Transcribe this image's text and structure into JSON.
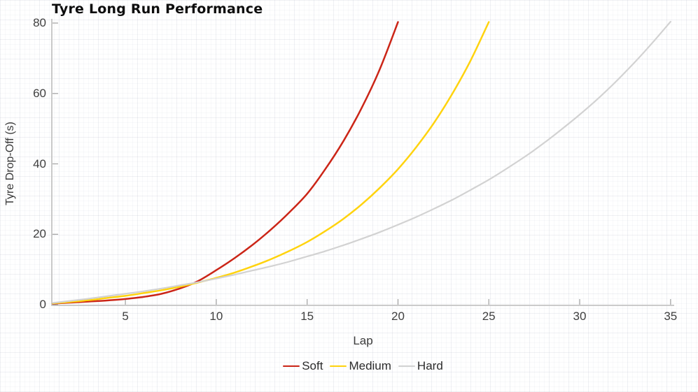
{
  "chart_data": {
    "type": "line",
    "title": "Tyre Long Run Performance",
    "xlabel": "Lap",
    "ylabel": "Tyre Drop-Off (s)",
    "xlim": [
      1,
      35.2
    ],
    "ylim": [
      0,
      80
    ],
    "x_ticks": [
      5,
      10,
      15,
      20,
      25,
      30,
      35
    ],
    "y_ticks": [
      0,
      20,
      40,
      60,
      80
    ],
    "grid": false,
    "legend_position": "bottom-center",
    "axis_color": "#c4c4c4",
    "tick_color": "#a6a6a6",
    "series": [
      {
        "name": "Soft",
        "color": "#cb2517",
        "x": [
          1,
          2,
          3,
          4,
          5,
          6,
          7,
          8,
          9,
          10,
          11,
          12,
          13,
          14,
          15,
          16,
          17,
          18,
          19,
          20
        ],
        "values": [
          0.3,
          0.6,
          0.9,
          1.2,
          1.6,
          2.2,
          3.1,
          4.6,
          6.7,
          9.8,
          13.2,
          17.0,
          21.3,
          26.1,
          31.5,
          38.5,
          46.5,
          55.9,
          66.9,
          80.3
        ]
      },
      {
        "name": "Medium",
        "color": "#ffd30e",
        "x": [
          1,
          2,
          3,
          4,
          5,
          6,
          7,
          8,
          9,
          10,
          11,
          12,
          13,
          14,
          15,
          16,
          17,
          18,
          19,
          20,
          21,
          22,
          23,
          24,
          25
        ],
        "values": [
          0.4,
          0.8,
          1.3,
          1.9,
          2.5,
          3.3,
          4.1,
          5.1,
          6.3,
          7.6,
          9.1,
          10.9,
          12.9,
          15.2,
          17.8,
          20.9,
          24.4,
          28.5,
          33.2,
          38.5,
          44.7,
          51.8,
          60.0,
          69.4,
          80.3
        ]
      },
      {
        "name": "Hard",
        "color": "#d2d2d2",
        "x": [
          1,
          2,
          3,
          4,
          5,
          6,
          7,
          8,
          9,
          10,
          11,
          12,
          13,
          14,
          15,
          16,
          17,
          18,
          19,
          20,
          21,
          22,
          23,
          24,
          25,
          26,
          27,
          28,
          29,
          30,
          31,
          32,
          33,
          34,
          35
        ],
        "values": [
          0.5,
          1.1,
          1.7,
          2.4,
          3.1,
          3.8,
          4.6,
          5.5,
          6.4,
          7.4,
          8.5,
          9.7,
          10.9,
          12.2,
          13.7,
          15.2,
          16.9,
          18.7,
          20.6,
          22.7,
          24.9,
          27.3,
          29.8,
          32.6,
          35.5,
          38.7,
          42.1,
          45.8,
          49.8,
          54.0,
          58.5,
          63.4,
          68.7,
          74.4,
          80.4
        ]
      }
    ]
  }
}
